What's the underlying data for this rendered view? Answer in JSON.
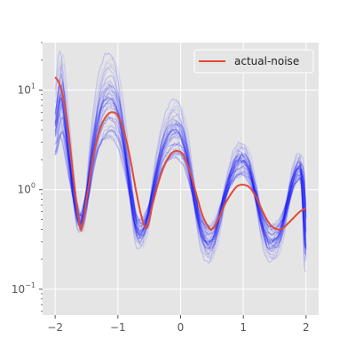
{
  "chart_data": {
    "type": "line",
    "title": "",
    "xlabel": "",
    "ylabel": "",
    "xlim": [
      -2.2,
      2.2
    ],
    "ylim": [
      0.055,
      30
    ],
    "yscale": "log",
    "grid": true,
    "legend_position": "top-right",
    "x_ticks": [
      {
        "value": -2,
        "label": "−2"
      },
      {
        "value": -1,
        "label": "−1"
      },
      {
        "value": 0,
        "label": "0"
      },
      {
        "value": 1,
        "label": "1"
      },
      {
        "value": 2,
        "label": "2"
      }
    ],
    "y_ticks": [
      {
        "value": 0.1,
        "base": "10",
        "exp": "−1"
      },
      {
        "value": 1,
        "base": "10",
        "exp": "0"
      },
      {
        "value": 10,
        "base": "10",
        "exp": "1"
      }
    ],
    "series": [
      {
        "name": "actual-noise",
        "color": "#e24a33",
        "x": [
          -2.0,
          -1.9,
          -1.8,
          -1.7,
          -1.62,
          -1.58,
          -1.5,
          -1.4,
          -1.3,
          -1.2,
          -1.1,
          -1.0,
          -0.9,
          -0.8,
          -0.7,
          -0.6,
          -0.53,
          -0.45,
          -0.35,
          -0.25,
          -0.15,
          -0.05,
          0.05,
          0.15,
          0.25,
          0.35,
          0.45,
          0.5,
          0.6,
          0.7,
          0.8,
          0.9,
          1.0,
          1.1,
          1.2,
          1.3,
          1.4,
          1.5,
          1.6,
          1.7,
          1.8,
          1.9,
          2.0
        ],
        "y": [
          13.5,
          10.0,
          4.5,
          1.2,
          0.5,
          0.4,
          0.8,
          2.0,
          3.8,
          5.3,
          6.0,
          5.5,
          3.8,
          2.0,
          0.9,
          0.48,
          0.42,
          0.7,
          1.2,
          1.8,
          2.3,
          2.45,
          2.2,
          1.5,
          0.9,
          0.55,
          0.42,
          0.4,
          0.5,
          0.7,
          0.9,
          1.08,
          1.12,
          1.05,
          0.85,
          0.62,
          0.47,
          0.41,
          0.4,
          0.45,
          0.52,
          0.6,
          0.65
        ]
      }
    ],
    "ensemble": {
      "color": "#0000ff",
      "count": 40,
      "envelope_x": [
        -2.0,
        -1.9,
        -1.8,
        -1.7,
        -1.6,
        -1.5,
        -1.4,
        -1.3,
        -1.2,
        -1.1,
        -1.0,
        -0.9,
        -0.8,
        -0.7,
        -0.6,
        -0.5,
        -0.4,
        -0.3,
        -0.2,
        -0.1,
        0.0,
        0.1,
        0.2,
        0.3,
        0.4,
        0.5,
        0.6,
        0.7,
        0.8,
        0.9,
        1.0,
        1.1,
        1.2,
        1.3,
        1.4,
        1.5,
        1.6,
        1.7,
        1.8,
        1.9,
        1.95,
        2.0
      ],
      "envelope_center": [
        4.0,
        9.0,
        3.0,
        0.9,
        0.45,
        0.8,
        2.5,
        5.5,
        8.0,
        8.5,
        6.5,
        3.0,
        1.0,
        0.4,
        0.38,
        0.6,
        1.3,
        2.4,
        3.4,
        4.0,
        3.7,
        2.3,
        1.0,
        0.45,
        0.3,
        0.3,
        0.45,
        0.85,
        1.4,
        1.9,
        2.0,
        1.6,
        0.9,
        0.45,
        0.3,
        0.3,
        0.38,
        0.7,
        1.3,
        1.7,
        1.2,
        0.25
      ],
      "spread_factor": 1.8
    }
  }
}
